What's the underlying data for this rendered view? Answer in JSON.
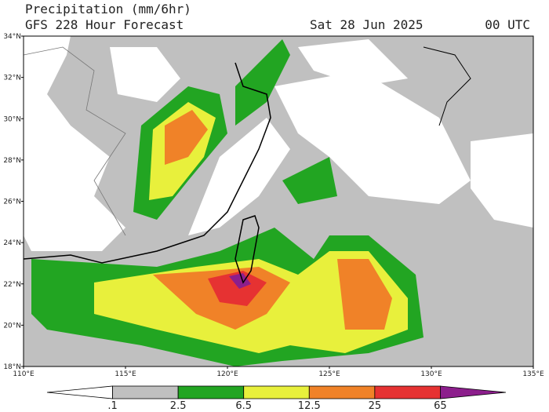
{
  "header": {
    "title_line1": "Precipitation (mm/6hr)",
    "title_line2": "GFS 228 Hour Forecast",
    "date": "Sat 28 Jun 2025",
    "time": "00 UTC"
  },
  "axes": {
    "lat_labels": [
      "34°N",
      "32°N",
      "30°N",
      "28°N",
      "26°N",
      "24°N",
      "22°N",
      "20°N",
      "18°N"
    ],
    "lon_labels": [
      "110°E",
      "115°E",
      "120°E",
      "125°E",
      "130°E",
      "135°E"
    ]
  },
  "colorbar": {
    "labels": [
      ".1",
      "2.5",
      "6.5",
      "12.5",
      "25",
      "65"
    ],
    "colors": [
      "#ffffff",
      "#c0c0c0",
      "#22a522",
      "#e8f03c",
      "#f08228",
      "#e63232",
      "#8c1e8c"
    ]
  }
}
